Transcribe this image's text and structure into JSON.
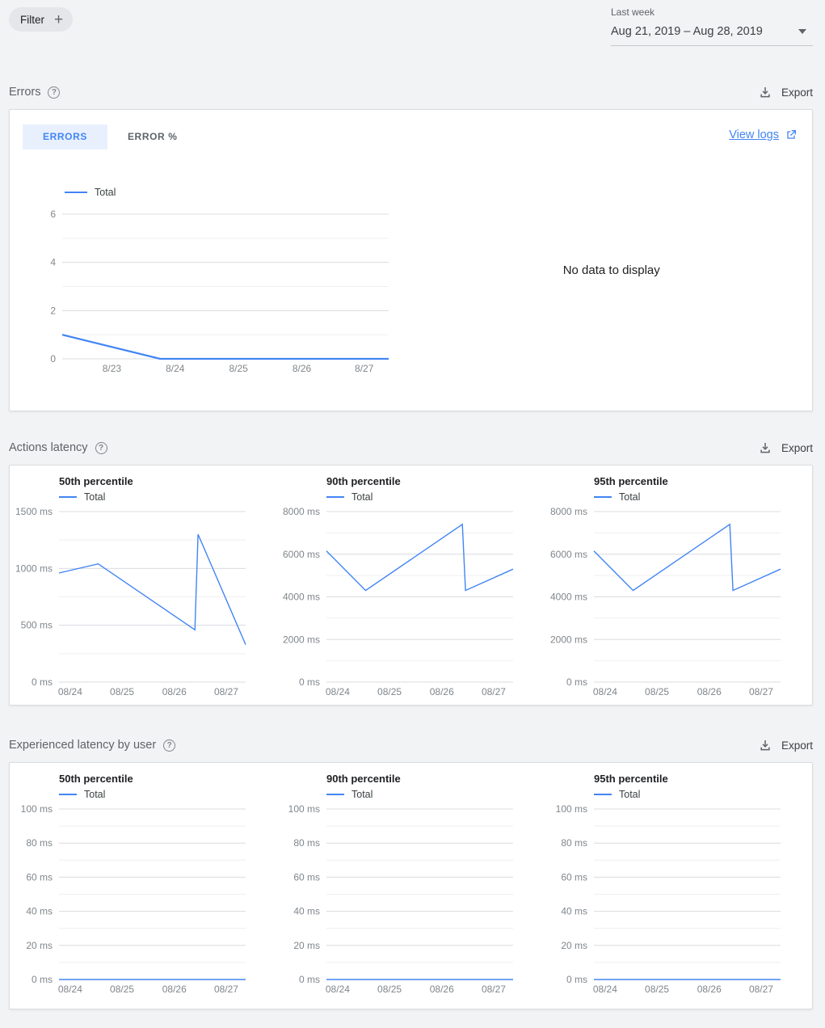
{
  "colors": {
    "accent": "#4285f4",
    "page_background": "#f1f3f4",
    "active_tab_bg": "#e8f0fe",
    "grid_major": "#dadce0",
    "grid_minor": "#efefef",
    "axis_label": "#80868b"
  },
  "toolbar": {
    "filter_label": "Filter",
    "range_label": "Last week",
    "range_value": "Aug 21, 2019 – Aug 28, 2019"
  },
  "sections": [
    {
      "title": "Errors",
      "export_label": "Export"
    },
    {
      "title": "Actions latency",
      "export_label": "Export"
    },
    {
      "title": "Experienced latency by user",
      "export_label": "Export"
    }
  ],
  "errors_card": {
    "tabs": [
      {
        "label": "ERRORS",
        "active": true
      },
      {
        "label": "ERROR %",
        "active": false
      }
    ],
    "view_logs_label": "View logs",
    "no_data_text": "No data to display"
  },
  "chart_data": [
    {
      "id": "errors-total",
      "type": "line",
      "title": "Errors",
      "legend_position": "top-left",
      "grid": true,
      "ylim": [
        0,
        6
      ],
      "yticks": [
        {
          "value": 0,
          "label": "0"
        },
        {
          "value": 2,
          "label": "2"
        },
        {
          "value": 4,
          "label": "4"
        },
        {
          "value": 6,
          "label": "6"
        }
      ],
      "y_minor": [
        1,
        3,
        5
      ],
      "xticks": [
        {
          "pos": 0.152,
          "label": "8/23"
        },
        {
          "pos": 0.346,
          "label": "8/24"
        },
        {
          "pos": 0.54,
          "label": "8/25"
        },
        {
          "pos": 0.734,
          "label": "8/26"
        },
        {
          "pos": 0.925,
          "label": "8/27"
        }
      ],
      "series": [
        {
          "name": "Total",
          "color": "#4285f4",
          "width": 2.2,
          "points": [
            [
              0,
              1
            ],
            [
              0.3,
              0
            ],
            [
              1,
              0
            ]
          ]
        }
      ]
    },
    {
      "id": "actions-latency-50th",
      "type": "line",
      "title": "50th percentile",
      "ylabel_unit": "ms",
      "grid": true,
      "ylim": [
        0,
        1500
      ],
      "yticks": [
        {
          "value": 0,
          "label": "0 ms"
        },
        {
          "value": 500,
          "label": "500 ms"
        },
        {
          "value": 1000,
          "label": "1000 ms"
        },
        {
          "value": 1500,
          "label": "1500 ms"
        }
      ],
      "y_minor": [
        250,
        750,
        1250
      ],
      "xticks": [
        {
          "pos": 0.06,
          "label": "08/24"
        },
        {
          "pos": 0.338,
          "label": "08/25"
        },
        {
          "pos": 0.618,
          "label": "08/26"
        },
        {
          "pos": 0.896,
          "label": "08/27"
        }
      ],
      "series": [
        {
          "name": "Total",
          "color": "#4285f4",
          "width": 1.4,
          "points": [
            [
              0,
              960
            ],
            [
              0.21,
              1040
            ],
            [
              0.728,
              460
            ],
            [
              0.745,
              1300
            ],
            [
              1,
              330
            ]
          ]
        }
      ]
    },
    {
      "id": "actions-latency-90th",
      "type": "line",
      "title": "90th percentile",
      "ylabel_unit": "ms",
      "grid": true,
      "ylim": [
        0,
        8000
      ],
      "yticks": [
        {
          "value": 0,
          "label": "0 ms"
        },
        {
          "value": 2000,
          "label": "2000 ms"
        },
        {
          "value": 4000,
          "label": "4000 ms"
        },
        {
          "value": 6000,
          "label": "6000 ms"
        },
        {
          "value": 8000,
          "label": "8000 ms"
        }
      ],
      "y_minor": [
        1000,
        3000,
        5000,
        7000
      ],
      "xticks": [
        {
          "pos": 0.06,
          "label": "08/24"
        },
        {
          "pos": 0.338,
          "label": "08/25"
        },
        {
          "pos": 0.618,
          "label": "08/26"
        },
        {
          "pos": 0.896,
          "label": "08/27"
        }
      ],
      "series": [
        {
          "name": "Total",
          "color": "#4285f4",
          "width": 1.4,
          "points": [
            [
              0,
              6150
            ],
            [
              0.21,
              4300
            ],
            [
              0.728,
              7400
            ],
            [
              0.745,
              4300
            ],
            [
              1,
              5300
            ]
          ]
        }
      ]
    },
    {
      "id": "actions-latency-95th",
      "type": "line",
      "title": "95th percentile",
      "ylabel_unit": "ms",
      "grid": true,
      "ylim": [
        0,
        8000
      ],
      "yticks": [
        {
          "value": 0,
          "label": "0 ms"
        },
        {
          "value": 2000,
          "label": "2000 ms"
        },
        {
          "value": 4000,
          "label": "4000 ms"
        },
        {
          "value": 6000,
          "label": "6000 ms"
        },
        {
          "value": 8000,
          "label": "8000 ms"
        }
      ],
      "y_minor": [
        1000,
        3000,
        5000,
        7000
      ],
      "xticks": [
        {
          "pos": 0.06,
          "label": "08/24"
        },
        {
          "pos": 0.338,
          "label": "08/25"
        },
        {
          "pos": 0.618,
          "label": "08/26"
        },
        {
          "pos": 0.896,
          "label": "08/27"
        }
      ],
      "series": [
        {
          "name": "Total",
          "color": "#4285f4",
          "width": 1.4,
          "points": [
            [
              0,
              6150
            ],
            [
              0.21,
              4300
            ],
            [
              0.728,
              7400
            ],
            [
              0.745,
              4300
            ],
            [
              1,
              5300
            ]
          ]
        }
      ]
    },
    {
      "id": "experienced-latency-50th",
      "type": "line",
      "title": "50th percentile",
      "ylabel_unit": "ms",
      "grid": true,
      "ylim": [
        0,
        100
      ],
      "yticks": [
        {
          "value": 0,
          "label": "0 ms"
        },
        {
          "value": 20,
          "label": "20 ms"
        },
        {
          "value": 40,
          "label": "40 ms"
        },
        {
          "value": 60,
          "label": "60 ms"
        },
        {
          "value": 80,
          "label": "80 ms"
        },
        {
          "value": 100,
          "label": "100 ms"
        }
      ],
      "y_minor": [
        10,
        30,
        50,
        70,
        90
      ],
      "xticks": [
        {
          "pos": 0.06,
          "label": "08/24"
        },
        {
          "pos": 0.338,
          "label": "08/25"
        },
        {
          "pos": 0.618,
          "label": "08/26"
        },
        {
          "pos": 0.896,
          "label": "08/27"
        }
      ],
      "series": [
        {
          "name": "Total",
          "color": "#4285f4",
          "width": 1.4,
          "points": [
            [
              0,
              0
            ],
            [
              1,
              0
            ]
          ]
        }
      ]
    },
    {
      "id": "experienced-latency-90th",
      "type": "line",
      "title": "90th percentile",
      "ylabel_unit": "ms",
      "grid": true,
      "ylim": [
        0,
        100
      ],
      "yticks": [
        {
          "value": 0,
          "label": "0 ms"
        },
        {
          "value": 20,
          "label": "20 ms"
        },
        {
          "value": 40,
          "label": "40 ms"
        },
        {
          "value": 60,
          "label": "60 ms"
        },
        {
          "value": 80,
          "label": "80 ms"
        },
        {
          "value": 100,
          "label": "100 ms"
        }
      ],
      "y_minor": [
        10,
        30,
        50,
        70,
        90
      ],
      "xticks": [
        {
          "pos": 0.06,
          "label": "08/24"
        },
        {
          "pos": 0.338,
          "label": "08/25"
        },
        {
          "pos": 0.618,
          "label": "08/26"
        },
        {
          "pos": 0.896,
          "label": "08/27"
        }
      ],
      "series": [
        {
          "name": "Total",
          "color": "#4285f4",
          "width": 1.4,
          "points": [
            [
              0,
              0
            ],
            [
              1,
              0
            ]
          ]
        }
      ]
    },
    {
      "id": "experienced-latency-95th",
      "type": "line",
      "title": "95th percentile",
      "ylabel_unit": "ms",
      "grid": true,
      "ylim": [
        0,
        100
      ],
      "yticks": [
        {
          "value": 0,
          "label": "0 ms"
        },
        {
          "value": 20,
          "label": "20 ms"
        },
        {
          "value": 40,
          "label": "40 ms"
        },
        {
          "value": 60,
          "label": "60 ms"
        },
        {
          "value": 80,
          "label": "80 ms"
        },
        {
          "value": 100,
          "label": "100 ms"
        }
      ],
      "y_minor": [
        10,
        30,
        50,
        70,
        90
      ],
      "xticks": [
        {
          "pos": 0.06,
          "label": "08/24"
        },
        {
          "pos": 0.338,
          "label": "08/25"
        },
        {
          "pos": 0.618,
          "label": "08/26"
        },
        {
          "pos": 0.896,
          "label": "08/27"
        }
      ],
      "series": [
        {
          "name": "Total",
          "color": "#4285f4",
          "width": 1.4,
          "points": [
            [
              0,
              0
            ],
            [
              1,
              0
            ]
          ]
        }
      ]
    }
  ]
}
